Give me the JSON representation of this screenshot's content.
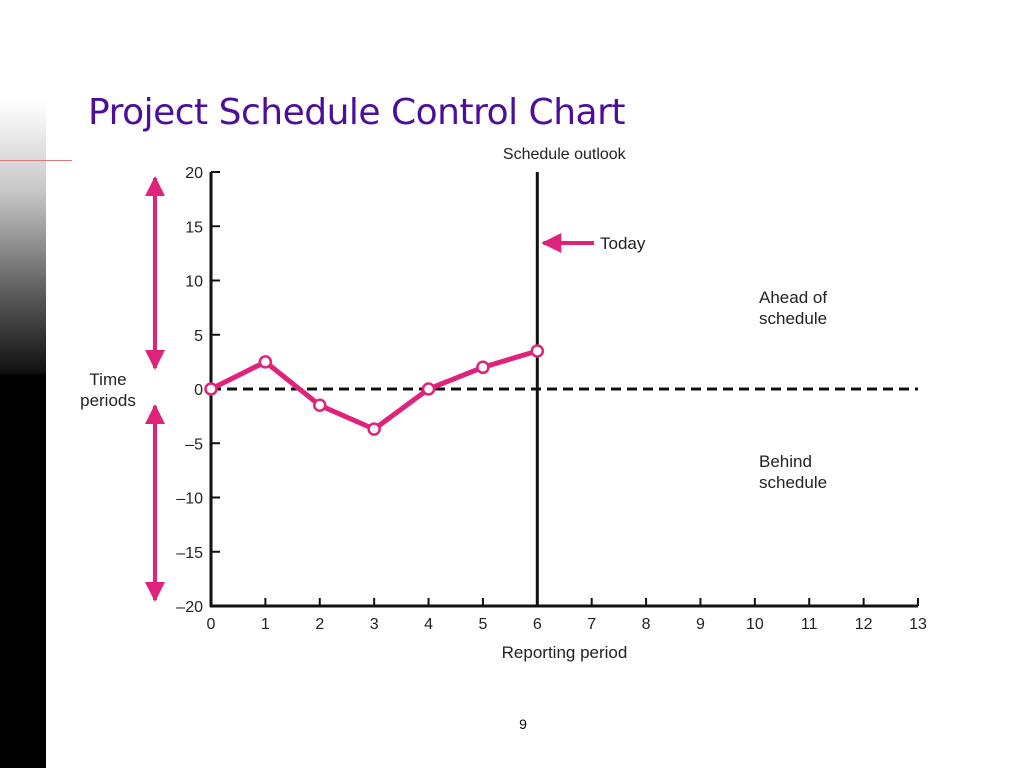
{
  "slide": {
    "title": "Project Schedule Control Chart",
    "page_number": "9",
    "colors": {
      "title": "#4b0f9c",
      "series": "#e0237a",
      "axis": "#111111"
    }
  },
  "chart_data": {
    "type": "line",
    "title": "",
    "xlabel": "Reporting period",
    "ylabel": "Time periods",
    "x_ticks": [
      0,
      1,
      2,
      3,
      4,
      5,
      6,
      7,
      8,
      9,
      10,
      11,
      12,
      13
    ],
    "y_ticks": [
      "20",
      "15",
      "10",
      "5",
      "0",
      "–5",
      "–10",
      "–15",
      "–20"
    ],
    "y_tick_values": [
      20,
      15,
      10,
      5,
      0,
      -5,
      -10,
      -15,
      -20
    ],
    "xlim": [
      0,
      13
    ],
    "ylim": [
      -20,
      20
    ],
    "series": [
      {
        "x": [
          0,
          1,
          2,
          3,
          4,
          5,
          6
        ],
        "y": [
          0,
          2.5,
          -1.5,
          -3.7,
          0,
          2,
          3.5
        ]
      }
    ],
    "reference_line": {
      "y": 0,
      "style": "dashed"
    },
    "vertical_line": {
      "x": 6,
      "label": "Schedule outlook"
    },
    "annotations": {
      "today": "Today",
      "ahead": [
        "Ahead of",
        "schedule"
      ],
      "behind": [
        "Behind",
        "schedule"
      ],
      "ylabel_lines": [
        "Time",
        "periods"
      ]
    },
    "grid": false
  }
}
